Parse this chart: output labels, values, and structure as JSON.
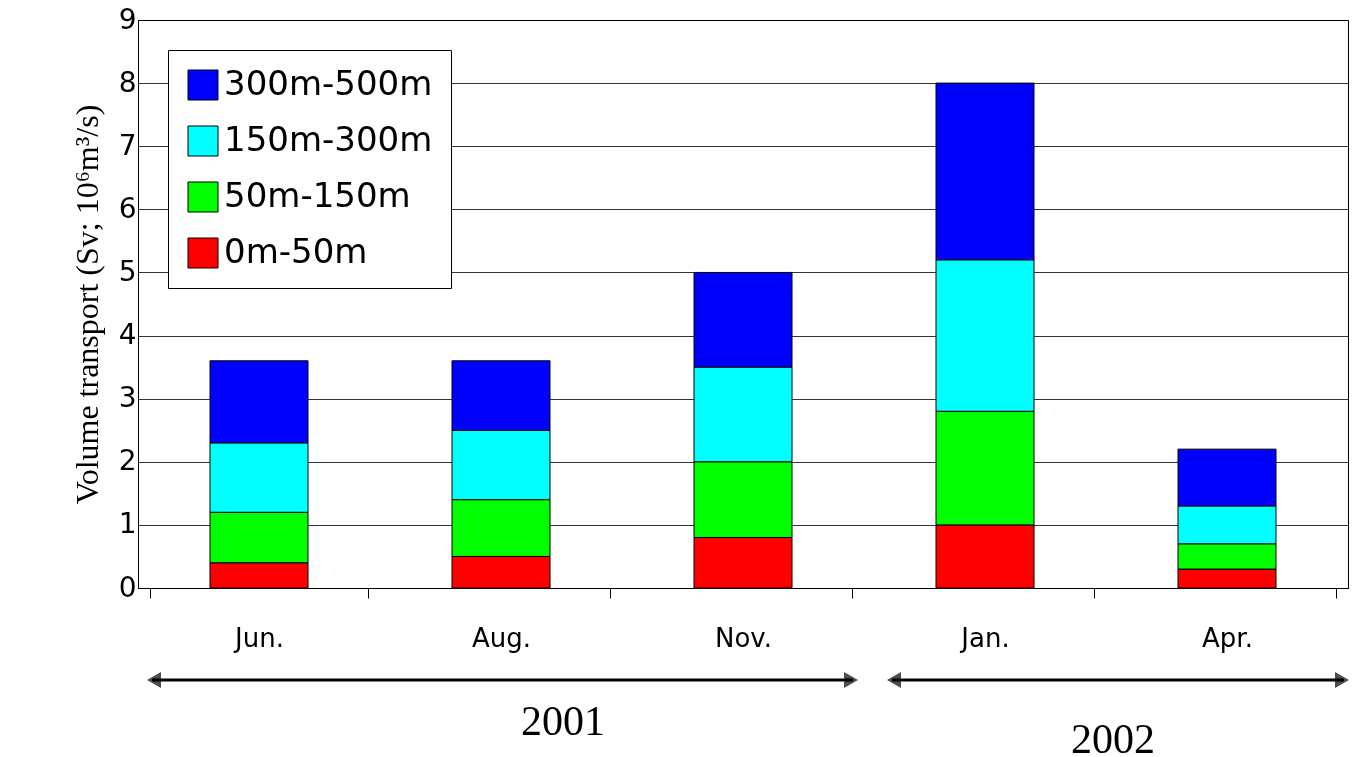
{
  "chart_data": {
    "type": "bar",
    "stacked": true,
    "ylabel": "Volume transport (Sv; 10⁶m³/s)",
    "categories": [
      "Jun.",
      "Aug.",
      "Nov.",
      "Jan.",
      "Apr."
    ],
    "series": [
      {
        "name": "0m-50m",
        "color": "#ff0000",
        "values": [
          0.4,
          0.5,
          0.8,
          1.0,
          0.3
        ]
      },
      {
        "name": "50m-150m",
        "color": "#00ff00",
        "values": [
          0.8,
          0.9,
          1.2,
          1.8,
          0.4
        ]
      },
      {
        "name": "150m-300m",
        "color": "#00ffff",
        "values": [
          1.1,
          1.1,
          1.5,
          2.4,
          0.6
        ]
      },
      {
        "name": "300m-500m",
        "color": "#0000ff",
        "values": [
          1.3,
          1.1,
          1.5,
          2.8,
          0.9
        ]
      }
    ],
    "ylim": [
      0,
      9
    ],
    "yticks": [
      0,
      1,
      2,
      3,
      4,
      5,
      6,
      7,
      8,
      9
    ],
    "grid": "y",
    "legend": "top left",
    "annotations": [
      "2001",
      "2002"
    ]
  }
}
